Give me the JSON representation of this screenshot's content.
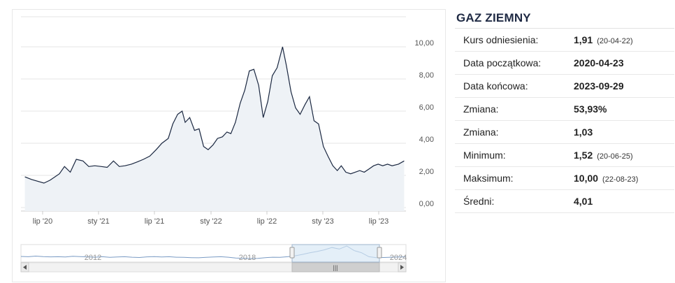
{
  "stats": {
    "title": "GAZ ZIEMNY",
    "rows": [
      {
        "label": "Kurs odniesienia:",
        "value": "1,91",
        "date": "(20-04-22)"
      },
      {
        "label": "Data początkowa:",
        "value": "2020-04-23",
        "date": ""
      },
      {
        "label": "Data końcowa:",
        "value": "2023-09-29",
        "date": ""
      },
      {
        "label": "Zmiana:",
        "value": "53,93%",
        "date": ""
      },
      {
        "label": "Zmiana:",
        "value": "1,03",
        "date": ""
      },
      {
        "label": "Minimum:",
        "value": "1,52",
        "date": "(20-06-25)"
      },
      {
        "label": "Maksimum:",
        "value": "10,00",
        "date": "(22-08-23)"
      },
      {
        "label": "Średni:",
        "value": "4,01",
        "date": ""
      }
    ]
  },
  "chart_data": {
    "type": "line",
    "series": [
      {
        "x": [
          "2020-04-23",
          "2020-05-15",
          "2020-06-25",
          "2020-07-15",
          "2020-08-15",
          "2020-09-01",
          "2020-09-20",
          "2020-10-10",
          "2020-11-01",
          "2020-11-20",
          "2020-12-10",
          "2021-01-01",
          "2021-01-20",
          "2021-02-10",
          "2021-03-01",
          "2021-03-20",
          "2021-04-10",
          "2021-05-01",
          "2021-05-20",
          "2021-06-10",
          "2021-07-01",
          "2021-07-20",
          "2021-08-10",
          "2021-08-25",
          "2021-09-10",
          "2021-09-25",
          "2021-10-05",
          "2021-10-20",
          "2021-11-05",
          "2021-11-20",
          "2021-12-05",
          "2021-12-20",
          "2022-01-05",
          "2022-01-20",
          "2022-02-05",
          "2022-02-20",
          "2022-03-05",
          "2022-03-20",
          "2022-04-05",
          "2022-04-20",
          "2022-05-05",
          "2022-05-20",
          "2022-06-05",
          "2022-06-20",
          "2022-07-05",
          "2022-07-20",
          "2022-08-05",
          "2022-08-23",
          "2022-09-05",
          "2022-09-20",
          "2022-10-05",
          "2022-10-20",
          "2022-11-05",
          "2022-11-20",
          "2022-12-05",
          "2022-12-20",
          "2023-01-05",
          "2023-01-20",
          "2023-02-05",
          "2023-02-20",
          "2023-03-05",
          "2023-03-20",
          "2023-04-05",
          "2023-04-20",
          "2023-05-05",
          "2023-05-20",
          "2023-06-05",
          "2023-06-20",
          "2023-07-05",
          "2023-07-20",
          "2023-08-05",
          "2023-08-20",
          "2023-09-10",
          "2023-09-29"
        ],
        "values": [
          1.91,
          1.75,
          1.52,
          1.7,
          2.1,
          2.55,
          2.2,
          3.0,
          2.9,
          2.55,
          2.6,
          2.55,
          2.5,
          2.9,
          2.55,
          2.6,
          2.7,
          2.85,
          3.0,
          3.2,
          3.6,
          4.0,
          4.3,
          5.2,
          5.8,
          6.0,
          5.3,
          5.6,
          4.8,
          4.9,
          3.8,
          3.6,
          3.9,
          4.3,
          4.4,
          4.7,
          4.6,
          5.3,
          6.5,
          7.3,
          8.5,
          8.6,
          7.6,
          5.6,
          6.6,
          8.2,
          8.7,
          10.0,
          8.8,
          7.2,
          6.2,
          5.8,
          6.4,
          6.9,
          5.4,
          5.2,
          3.8,
          3.2,
          2.6,
          2.3,
          2.6,
          2.2,
          2.1,
          2.2,
          2.3,
          2.2,
          2.4,
          2.6,
          2.7,
          2.6,
          2.7,
          2.6,
          2.7,
          2.9
        ]
      }
    ],
    "x_ticks": [
      "lip '20",
      "sty '21",
      "lip '21",
      "sty '22",
      "lip '22",
      "sty '23",
      "lip '23"
    ],
    "y_ticks": [
      "0,00",
      "2,00",
      "4,00",
      "6,00",
      "8,00",
      "10,00"
    ],
    "ylim": [
      0,
      10
    ],
    "grid": true,
    "navigator": {
      "labels": [
        "2012",
        "2018",
        "2024"
      ],
      "scroll_icon": "grip-icon",
      "left_arrow": "arrow-left-icon",
      "right_arrow": "arrow-right-icon"
    },
    "colors": {
      "line": "#1a2740",
      "area": "#eef2f6",
      "grid": "#e6e6e6",
      "navigator_selection": "#d6e6f5"
    }
  }
}
